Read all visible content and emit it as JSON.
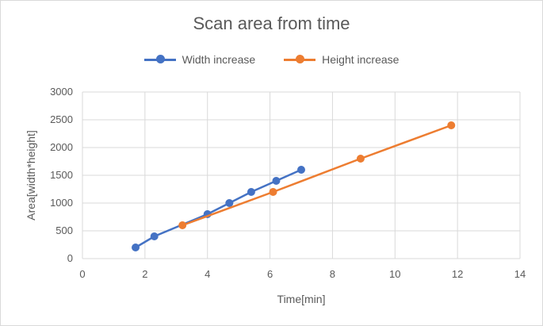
{
  "chart_data": {
    "type": "scatter",
    "title": "Scan area from time",
    "xlabel": "Time[min]",
    "ylabel": "Area[width*height]",
    "xlim": [
      0,
      14
    ],
    "ylim": [
      0,
      3000
    ],
    "xticks": [
      0,
      2,
      4,
      6,
      8,
      10,
      12,
      14
    ],
    "yticks": [
      0,
      500,
      1000,
      1500,
      2000,
      2500,
      3000
    ],
    "grid": true,
    "legend_position": "top",
    "series": [
      {
        "name": "Width increase",
        "color": "#4472c4",
        "points": [
          {
            "x": 1.7,
            "y": 200
          },
          {
            "x": 2.3,
            "y": 400
          },
          {
            "x": 4.0,
            "y": 800
          },
          {
            "x": 4.7,
            "y": 1000
          },
          {
            "x": 5.4,
            "y": 1200
          },
          {
            "x": 6.2,
            "y": 1400
          },
          {
            "x": 7.0,
            "y": 1600
          }
        ]
      },
      {
        "name": "Height increase",
        "color": "#ed7d31",
        "points": [
          {
            "x": 3.2,
            "y": 600
          },
          {
            "x": 6.1,
            "y": 1200
          },
          {
            "x": 8.9,
            "y": 1800
          },
          {
            "x": 11.8,
            "y": 2400
          }
        ]
      }
    ]
  }
}
